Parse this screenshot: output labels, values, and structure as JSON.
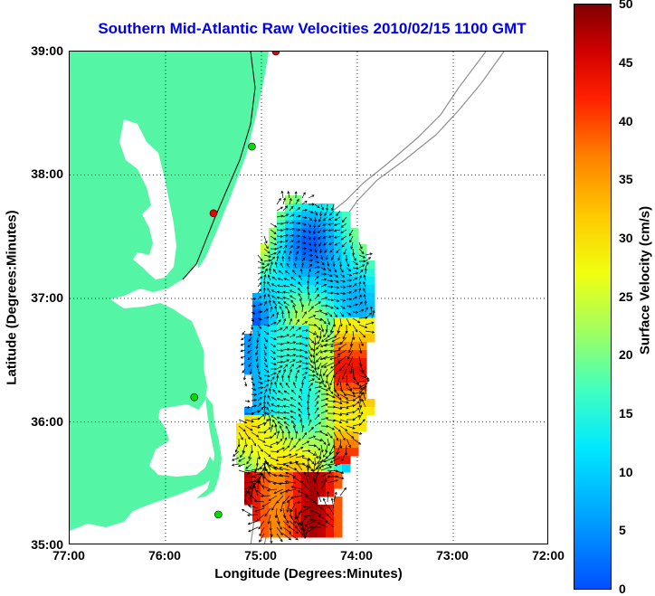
{
  "title": "Southern Mid-Atlantic Raw Velocities 2010/02/15 1100 GMT",
  "axes": {
    "xlabel": "Longitude (Degrees:Minutes)",
    "ylabel": "Latitude (Degrees:Minutes)",
    "xticks": [
      "77:00",
      "76:00",
      "75:00",
      "74:00",
      "73:00",
      "72:00"
    ],
    "yticks": [
      "39:00",
      "38:00",
      "37:00",
      "36:00",
      "35:00"
    ],
    "xlim_deg": [
      -77,
      -72
    ],
    "ylim_deg": [
      35,
      39
    ],
    "grid": "dotted"
  },
  "colorbar": {
    "label": "Surface Velocity (cm/s)",
    "ticks": [
      "50",
      "45",
      "40",
      "35",
      "30",
      "25",
      "20",
      "15",
      "10",
      "5",
      "0"
    ],
    "range": [
      0,
      50
    ]
  },
  "colors": {
    "land": "#55f5a6",
    "coastline": "#000000",
    "bathymetry": "#909090",
    "title": "#0000ee",
    "station_green": "#00dd00",
    "station_red": "#ee0000"
  },
  "stations": [
    {
      "color": "red",
      "lon": -74.85,
      "lat": 39.0
    },
    {
      "color": "green",
      "lon": -75.1,
      "lat": 38.23
    },
    {
      "color": "red",
      "lon": -75.5,
      "lat": 37.69
    },
    {
      "color": "green",
      "lon": -75.7,
      "lat": 36.2
    },
    {
      "color": "green",
      "lon": -75.45,
      "lat": 35.25
    }
  ]
}
